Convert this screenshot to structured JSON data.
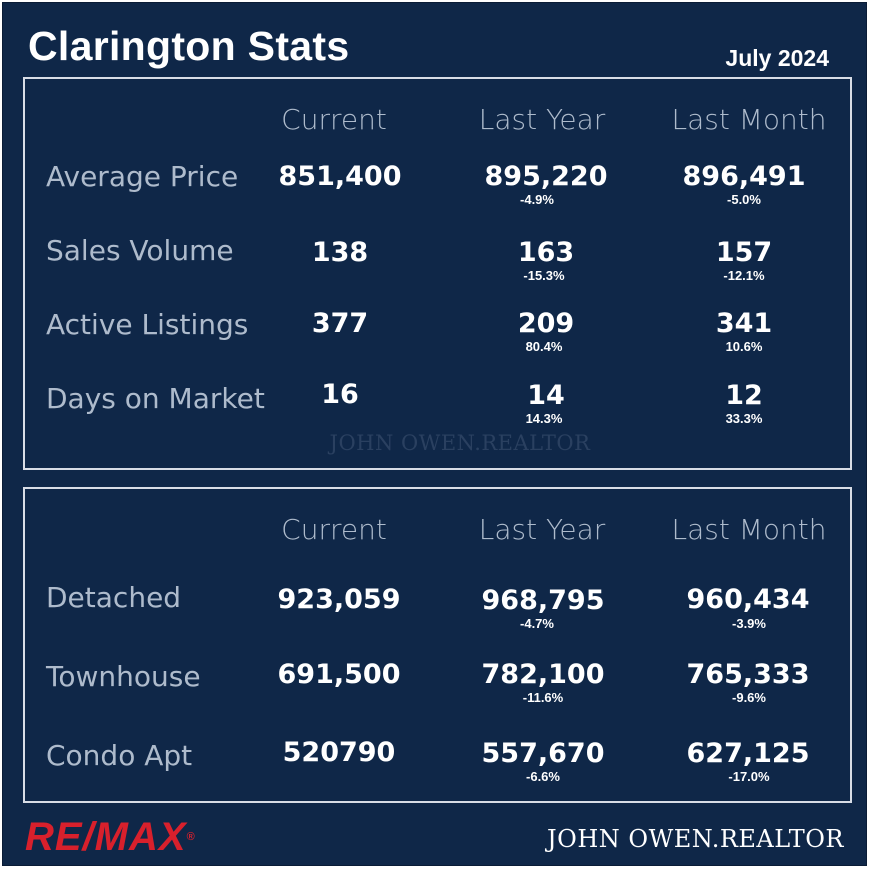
{
  "header": {
    "title": "Clarington Stats",
    "date": "July 2024"
  },
  "columns": [
    "Current",
    "Last Year",
    "Last Month"
  ],
  "summary": {
    "rows": [
      {
        "label": "Average Price",
        "current": "851,400",
        "last_year": "895,220",
        "last_year_change": "-4.9%",
        "last_month": "896,491",
        "last_month_change": "-5.0%"
      },
      {
        "label": "Sales Volume",
        "current": "138",
        "last_year": "163",
        "last_year_change": "-15.3%",
        "last_month": "157",
        "last_month_change": "-12.1%"
      },
      {
        "label": "Active Listings",
        "current": "377",
        "last_year": "209",
        "last_year_change": "80.4%",
        "last_month": "341",
        "last_month_change": "10.6%"
      },
      {
        "label": "Days on Market",
        "current": "16",
        "last_year": "14",
        "last_year_change": "14.3%",
        "last_month": "12",
        "last_month_change": "33.3%"
      }
    ],
    "watermark": "JOHN OWEN.REALTOR"
  },
  "by_type": {
    "rows": [
      {
        "label": "Detached",
        "current": "923,059",
        "last_year": "968,795",
        "last_year_change": "-4.7%",
        "last_month": "960,434",
        "last_month_change": "-3.9%"
      },
      {
        "label": "Townhouse",
        "current": "691,500",
        "last_year": "782,100",
        "last_year_change": "-11.6%",
        "last_month": "765,333",
        "last_month_change": "-9.6%"
      },
      {
        "label": "Condo Apt",
        "current": "520790",
        "last_year": "557,670",
        "last_year_change": "-6.6%",
        "last_month": "627,125",
        "last_month_change": "-17.0%"
      }
    ]
  },
  "footer": {
    "brand_logo": "RE/MAX",
    "signature": "JOHN OWEN.REALTOR"
  },
  "colors": {
    "background": "#0f2748",
    "label": "#aebbcc",
    "value": "#ffffff",
    "brand_red": "#d8202c"
  }
}
